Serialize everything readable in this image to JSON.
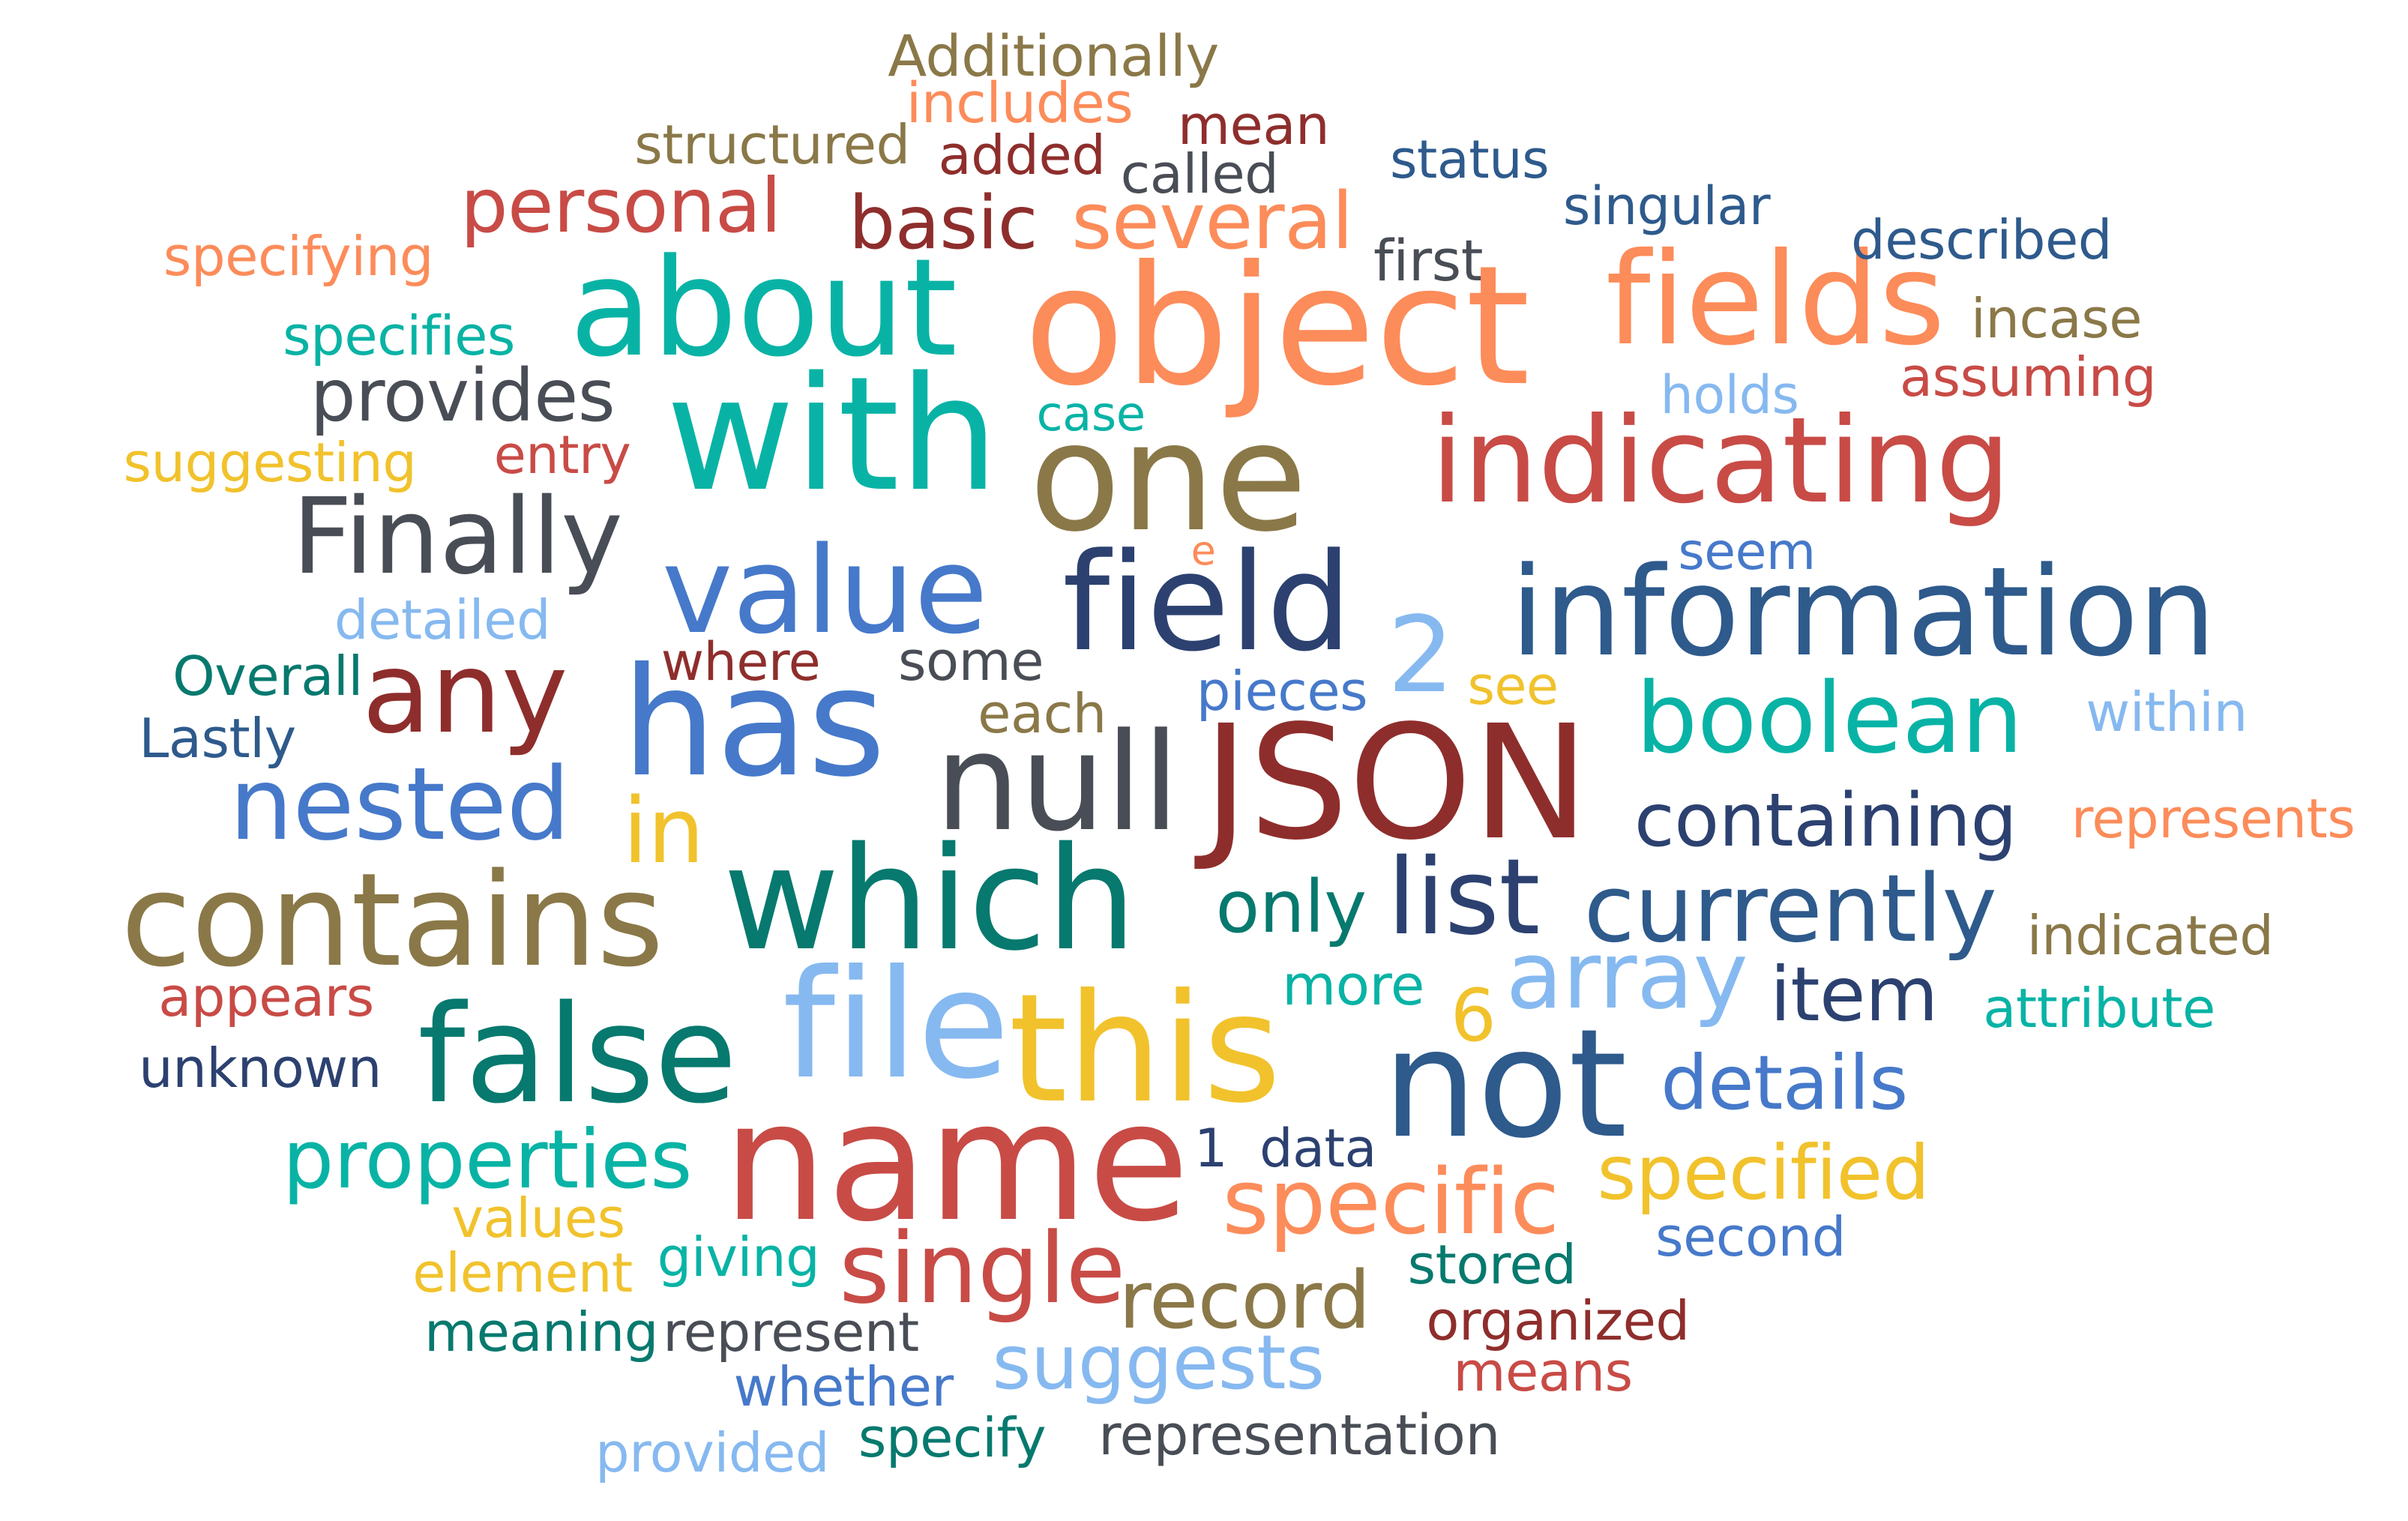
{
  "palette": {
    "teal": "#08B3A5",
    "dark_teal": "#07796E",
    "orange": "#FC8C5A",
    "red": "#C84B46",
    "dark_red": "#8E2E2C",
    "olive": "#8A7848",
    "gold": "#F1C22C",
    "blue": "#4679CA",
    "navy": "#2C4170",
    "steel": "#2E5A8C",
    "light_blue": "#86B9F0",
    "charcoal": "#494D55"
  },
  "words": [
    {
      "text": "Additionally",
      "color": "#8A7848"
    },
    {
      "text": "includes",
      "color": "#FC8C5A"
    },
    {
      "text": "mean",
      "color": "#8E2E2C"
    },
    {
      "text": "structured",
      "color": "#8A7848"
    },
    {
      "text": "added",
      "color": "#8E2E2C"
    },
    {
      "text": "called",
      "color": "#494D55"
    },
    {
      "text": "status",
      "color": "#2E5A8C"
    },
    {
      "text": "personal",
      "color": "#C84B46"
    },
    {
      "text": "basic",
      "color": "#8E2E2C"
    },
    {
      "text": "several",
      "color": "#FC8C5A"
    },
    {
      "text": "singular",
      "color": "#2E5A8C"
    },
    {
      "text": "specifying",
      "color": "#FC8C5A"
    },
    {
      "text": "about",
      "color": "#08B3A5"
    },
    {
      "text": "first",
      "color": "#494D55"
    },
    {
      "text": "object",
      "color": "#FC8C5A"
    },
    {
      "text": "fields",
      "color": "#FC8C5A"
    },
    {
      "text": "described",
      "color": "#2E5A8C"
    },
    {
      "text": "incase",
      "color": "#8A7848"
    },
    {
      "text": "specifies",
      "color": "#08B3A5"
    },
    {
      "text": "assuming",
      "color": "#C84B46"
    },
    {
      "text": "provides",
      "color": "#494D55"
    },
    {
      "text": "with",
      "color": "#08B3A5"
    },
    {
      "text": "case",
      "color": "#08B3A5"
    },
    {
      "text": "holds",
      "color": "#86B9F0"
    },
    {
      "text": "suggesting",
      "color": "#F1C22C"
    },
    {
      "text": "entry",
      "color": "#C84B46"
    },
    {
      "text": "one",
      "color": "#8A7848"
    },
    {
      "text": "indicating",
      "color": "#C84B46"
    },
    {
      "text": "Finally",
      "color": "#494D55"
    },
    {
      "text": "e",
      "color": "#FC8C5A"
    },
    {
      "text": "seem",
      "color": "#4679CA"
    },
    {
      "text": "value",
      "color": "#4679CA"
    },
    {
      "text": "field",
      "color": "#2C4170"
    },
    {
      "text": "information",
      "color": "#2E5A8C"
    },
    {
      "text": "detailed",
      "color": "#86B9F0"
    },
    {
      "text": "2",
      "color": "#86B9F0"
    },
    {
      "text": "Overall",
      "color": "#07796E"
    },
    {
      "text": "where",
      "color": "#8E2E2C"
    },
    {
      "text": "some",
      "color": "#494D55"
    },
    {
      "text": "any",
      "color": "#8E2E2C"
    },
    {
      "text": "pieces",
      "color": "#4679CA"
    },
    {
      "text": "see",
      "color": "#F1C22C"
    },
    {
      "text": "boolean",
      "color": "#08B3A5"
    },
    {
      "text": "within",
      "color": "#86B9F0"
    },
    {
      "text": "has",
      "color": "#4679CA"
    },
    {
      "text": "each",
      "color": "#8A7848"
    },
    {
      "text": "Lastly",
      "color": "#2E5A8C"
    },
    {
      "text": "null",
      "color": "#494D55"
    },
    {
      "text": "JSON",
      "color": "#8E2E2C"
    },
    {
      "text": "nested",
      "color": "#4679CA"
    },
    {
      "text": "containing",
      "color": "#2C4170"
    },
    {
      "text": "represents",
      "color": "#FC8C5A"
    },
    {
      "text": "in",
      "color": "#F1C22C"
    },
    {
      "text": "contains",
      "color": "#8A7848"
    },
    {
      "text": "which",
      "color": "#07796E"
    },
    {
      "text": "only",
      "color": "#07796E"
    },
    {
      "text": "list",
      "color": "#2C4170"
    },
    {
      "text": "currently",
      "color": "#2E5A8C"
    },
    {
      "text": "indicated",
      "color": "#8A7848"
    },
    {
      "text": "array",
      "color": "#86B9F0"
    },
    {
      "text": "more",
      "color": "#08B3A5"
    },
    {
      "text": "item",
      "color": "#2C4170"
    },
    {
      "text": "attribute",
      "color": "#08B3A5"
    },
    {
      "text": "appears",
      "color": "#C84B46"
    },
    {
      "text": "6",
      "color": "#F1C22C"
    },
    {
      "text": "file",
      "color": "#86B9F0"
    },
    {
      "text": "this",
      "color": "#F1C22C"
    },
    {
      "text": "false",
      "color": "#07796E"
    },
    {
      "text": "not",
      "color": "#2E5A8C"
    },
    {
      "text": "unknown",
      "color": "#2C4170"
    },
    {
      "text": "details",
      "color": "#4679CA"
    },
    {
      "text": "name",
      "color": "#C84B46"
    },
    {
      "text": "properties",
      "color": "#08B3A5"
    },
    {
      "text": "1",
      "color": "#2C4170"
    },
    {
      "text": "data",
      "color": "#2C4170"
    },
    {
      "text": "specified",
      "color": "#F1C22C"
    },
    {
      "text": "specific",
      "color": "#FC8C5A"
    },
    {
      "text": "values",
      "color": "#F1C22C"
    },
    {
      "text": "second",
      "color": "#4679CA"
    },
    {
      "text": "giving",
      "color": "#08B3A5"
    },
    {
      "text": "single",
      "color": "#C84B46"
    },
    {
      "text": "stored",
      "color": "#07796E"
    },
    {
      "text": "element",
      "color": "#F1C22C"
    },
    {
      "text": "record",
      "color": "#8A7848"
    },
    {
      "text": "organized",
      "color": "#8E2E2C"
    },
    {
      "text": "meaning",
      "color": "#07796E"
    },
    {
      "text": "represent",
      "color": "#494D55"
    },
    {
      "text": "suggests",
      "color": "#86B9F0"
    },
    {
      "text": "means",
      "color": "#C84B46"
    },
    {
      "text": "whether",
      "color": "#4679CA"
    },
    {
      "text": "specify",
      "color": "#07796E"
    },
    {
      "text": "representation",
      "color": "#494D55"
    },
    {
      "text": "provided",
      "color": "#86B9F0"
    }
  ]
}
